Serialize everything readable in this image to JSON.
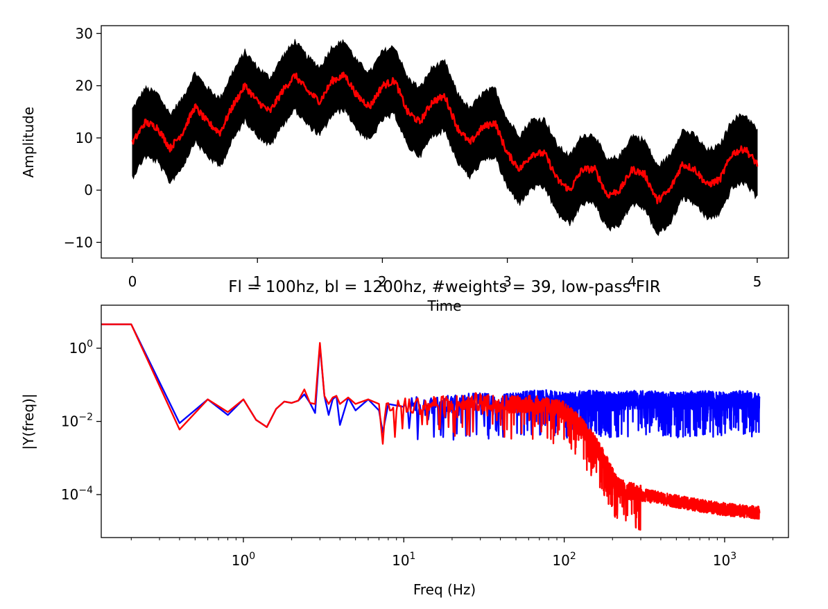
{
  "chart_data": [
    {
      "type": "line",
      "title": "",
      "xlabel": "Time",
      "ylabel": "Amplitude",
      "xlim": [
        -0.25,
        5.25
      ],
      "ylim": [
        -13,
        31.5
      ],
      "xticks": [
        0,
        1,
        2,
        3,
        4,
        5
      ],
      "xtick_labels": [
        "0",
        "1",
        "2",
        "3",
        "4",
        "5"
      ],
      "yticks": [
        -10,
        0,
        10,
        20,
        30
      ],
      "ytick_labels": [
        "−10",
        "0",
        "10",
        "20",
        "30"
      ],
      "grid": false,
      "series": [
        {
          "color": "#000000",
          "band_halfwidth": 6.5,
          "x": [
            0,
            0.1,
            0.2,
            0.3,
            0.4,
            0.5,
            0.6,
            0.7,
            0.8,
            0.9,
            1.0,
            1.1,
            1.2,
            1.3,
            1.4,
            1.5,
            1.6,
            1.7,
            1.8,
            1.9,
            2.0,
            2.1,
            2.2,
            2.3,
            2.4,
            2.5,
            2.6,
            2.7,
            2.8,
            2.9,
            3.0,
            3.1,
            3.2,
            3.3,
            3.4,
            3.5,
            3.6,
            3.7,
            3.8,
            3.9,
            4.0,
            4.1,
            4.2,
            4.3,
            4.4,
            4.5,
            4.6,
            4.7,
            4.8,
            4.9,
            5.0
          ],
          "y": [
            9,
            13,
            12,
            8,
            11,
            16,
            13,
            11,
            16,
            20,
            17,
            15,
            19,
            22,
            19,
            17,
            21,
            22,
            18,
            16,
            20,
            21,
            15,
            13,
            17,
            18,
            12,
            9,
            12,
            13,
            7,
            4,
            7,
            7,
            2,
            0,
            4,
            4,
            -1,
            0,
            4,
            3,
            -2,
            0,
            5,
            4,
            1,
            2,
            7,
            8,
            5
          ]
        },
        {
          "color": "#ff0000",
          "x": [
            0,
            0.1,
            0.2,
            0.3,
            0.4,
            0.5,
            0.6,
            0.7,
            0.8,
            0.9,
            1.0,
            1.1,
            1.2,
            1.3,
            1.4,
            1.5,
            1.6,
            1.7,
            1.8,
            1.9,
            2.0,
            2.1,
            2.2,
            2.3,
            2.4,
            2.5,
            2.6,
            2.7,
            2.8,
            2.9,
            3.0,
            3.1,
            3.2,
            3.3,
            3.4,
            3.5,
            3.6,
            3.7,
            3.8,
            3.9,
            4.0,
            4.1,
            4.2,
            4.3,
            4.4,
            4.5,
            4.6,
            4.7,
            4.8,
            4.9,
            5.0
          ],
          "y": [
            9,
            13,
            12,
            8,
            11,
            16,
            13,
            11,
            16,
            20,
            17,
            15,
            19,
            22,
            19,
            17,
            21,
            22,
            18,
            16,
            20,
            21,
            15,
            13,
            17,
            18,
            12,
            9,
            12,
            13,
            7,
            4,
            7,
            7,
            2,
            0,
            4,
            4,
            -1,
            0,
            4,
            3,
            -2,
            0,
            5,
            4,
            1,
            2,
            7,
            8,
            5
          ]
        }
      ]
    },
    {
      "type": "line",
      "title": "Fl = 100hz, bl = 1200hz, #weights = 39, low-pass FIR",
      "xlabel": "Freq (Hz)",
      "ylabel": "|Y(freq)|",
      "xscale": "log",
      "yscale": "log",
      "xlim": [
        0.13,
        2500
      ],
      "ylim": [
        6.7e-06,
        15
      ],
      "xticks": [
        1,
        10,
        100,
        1000
      ],
      "xtick_labels": [
        {
          "base": "10",
          "exp": "0"
        },
        {
          "base": "10",
          "exp": "1"
        },
        {
          "base": "10",
          "exp": "2"
        },
        {
          "base": "10",
          "exp": "3"
        }
      ],
      "yticks": [
        1,
        0.01,
        0.0001
      ],
      "ytick_labels": [
        {
          "base": "10",
          "exp": "0"
        },
        {
          "base": "10",
          "exp": "−2"
        },
        {
          "base": "10",
          "exp": "−4"
        }
      ],
      "grid": false,
      "series": [
        {
          "color": "#0000ff",
          "x": [
            0.13,
            0.2,
            0.4,
            0.6,
            0.8,
            1.0,
            1.2,
            1.4,
            1.6,
            1.8,
            2.0,
            2.2,
            2.4,
            2.6,
            2.8,
            3.0,
            3.2,
            3.4,
            3.6,
            3.8,
            4.0,
            4.5,
            5,
            6,
            7,
            7.4,
            8,
            10,
            15,
            20,
            30,
            40,
            60,
            80,
            100,
            150,
            200,
            300,
            500,
            700,
            1000,
            1300,
            1600,
            1650
          ],
          "y": [
            4.5,
            4.5,
            0.009,
            0.04,
            0.015,
            0.04,
            0.011,
            0.007,
            0.022,
            0.035,
            0.032,
            0.037,
            0.055,
            0.032,
            0.017,
            1.2,
            0.05,
            0.015,
            0.04,
            0.05,
            0.008,
            0.045,
            0.02,
            0.04,
            0.02,
            0.005,
            0.03,
            0.025,
            0.03,
            0.03,
            0.035,
            0.03,
            0.04,
            0.04,
            0.035,
            0.04,
            0.035,
            0.04,
            0.035,
            0.04,
            0.035,
            0.04,
            0.035,
            0.035
          ],
          "noise_band": {
            "x_from": 10,
            "x_to": 1650,
            "low": 0.003,
            "high": 0.09
          }
        },
        {
          "color": "#ff0000",
          "x": [
            0.13,
            0.2,
            0.4,
            0.6,
            0.8,
            1.0,
            1.2,
            1.4,
            1.6,
            1.8,
            2.0,
            2.2,
            2.4,
            2.6,
            2.8,
            3.0,
            3.2,
            3.4,
            3.6,
            3.8,
            4.0,
            4.5,
            5,
            6,
            7,
            7.4,
            8,
            10,
            15,
            20,
            30,
            40,
            50,
            60,
            80,
            100,
            120,
            150,
            180,
            200,
            220,
            250,
            300,
            400,
            500,
            700,
            1000,
            1300,
            1650
          ],
          "y": [
            4.5,
            4.5,
            0.006,
            0.04,
            0.018,
            0.04,
            0.011,
            0.007,
            0.022,
            0.035,
            0.032,
            0.037,
            0.075,
            0.032,
            0.03,
            1.4,
            0.05,
            0.03,
            0.045,
            0.05,
            0.03,
            0.045,
            0.03,
            0.04,
            0.03,
            0.006,
            0.03,
            0.025,
            0.03,
            0.03,
            0.035,
            0.03,
            0.03,
            0.03,
            0.025,
            0.02,
            0.01,
            0.003,
            0.0008,
            0.0003,
            0.00015,
            0.00013,
            0.0001,
            8e-05,
            6.5e-05,
            5e-05,
            4e-05,
            3.5e-05,
            3.2e-05
          ],
          "noise_band": {
            "x_from": 7,
            "x_to": 300,
            "low": 0.003,
            "high": 0.05
          }
        }
      ]
    }
  ]
}
